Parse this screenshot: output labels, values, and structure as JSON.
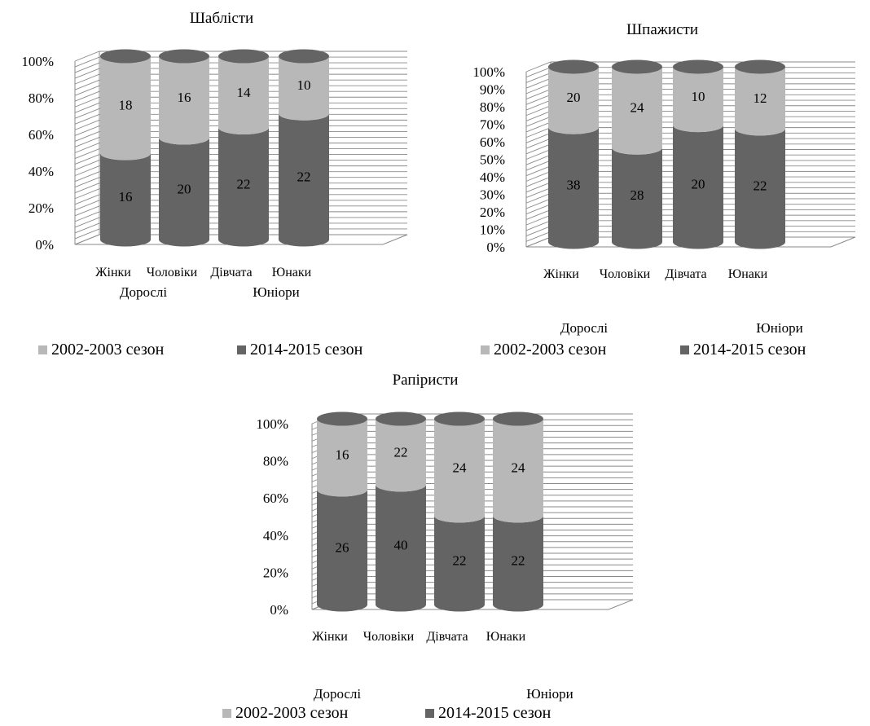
{
  "colors": {
    "season_2002": "#b8b8b8",
    "season_2014": "#646464",
    "gridline": "#8a8a8a",
    "text": "#000000"
  },
  "legend": {
    "series_2002": "2002-2003 сезон",
    "series_2014": "2014-2015 сезон"
  },
  "chart_data": [
    {
      "type": "bar",
      "stacked": "percent",
      "style": "3d-cylinder",
      "title": "Шаблісти",
      "categories": [
        "Жінки",
        "Чоловіки",
        "Дівчата",
        "Юнаки"
      ],
      "groups": [
        "Дорослі",
        "Юніори"
      ],
      "series": [
        {
          "name": "2014-2015 сезон",
          "values": [
            16,
            20,
            22,
            22
          ]
        },
        {
          "name": "2002-2003 сезон",
          "values": [
            18,
            16,
            14,
            10
          ]
        }
      ],
      "y_ticks": [
        "0%",
        "20%",
        "40%",
        "60%",
        "80%",
        "100%"
      ],
      "ylim": [
        0,
        100
      ],
      "grid": true,
      "legend_position": "bottom"
    },
    {
      "type": "bar",
      "stacked": "percent",
      "style": "3d-cylinder",
      "title": "Шпажисти",
      "categories": [
        "Жінки",
        "Чоловіки",
        "Дівчата",
        "Юнаки"
      ],
      "groups": [
        "Дорослі",
        "Юніори"
      ],
      "series": [
        {
          "name": "2014-2015 сезон",
          "values": [
            38,
            28,
            20,
            22
          ]
        },
        {
          "name": "2002-2003 сезон",
          "values": [
            20,
            24,
            10,
            12
          ]
        }
      ],
      "y_ticks": [
        "0%",
        "10%",
        "20%",
        "30%",
        "40%",
        "50%",
        "60%",
        "70%",
        "80%",
        "90%",
        "100%"
      ],
      "ylim": [
        0,
        100
      ],
      "grid": true,
      "legend_position": "bottom"
    },
    {
      "type": "bar",
      "stacked": "percent",
      "style": "3d-cylinder",
      "title": "Рапіристи",
      "categories": [
        "Жінки",
        "Чоловіки",
        "Дівчата",
        "Юнаки"
      ],
      "groups": [
        "Дорослі",
        "Юніори"
      ],
      "series": [
        {
          "name": "2014-2015 сезон",
          "values": [
            26,
            40,
            22,
            22
          ]
        },
        {
          "name": "2002-2003 сезон",
          "values": [
            16,
            22,
            24,
            24
          ]
        }
      ],
      "y_ticks": [
        "0%",
        "20%",
        "40%",
        "60%",
        "80%",
        "100%"
      ],
      "ylim": [
        0,
        100
      ],
      "grid": true,
      "legend_position": "bottom"
    }
  ]
}
